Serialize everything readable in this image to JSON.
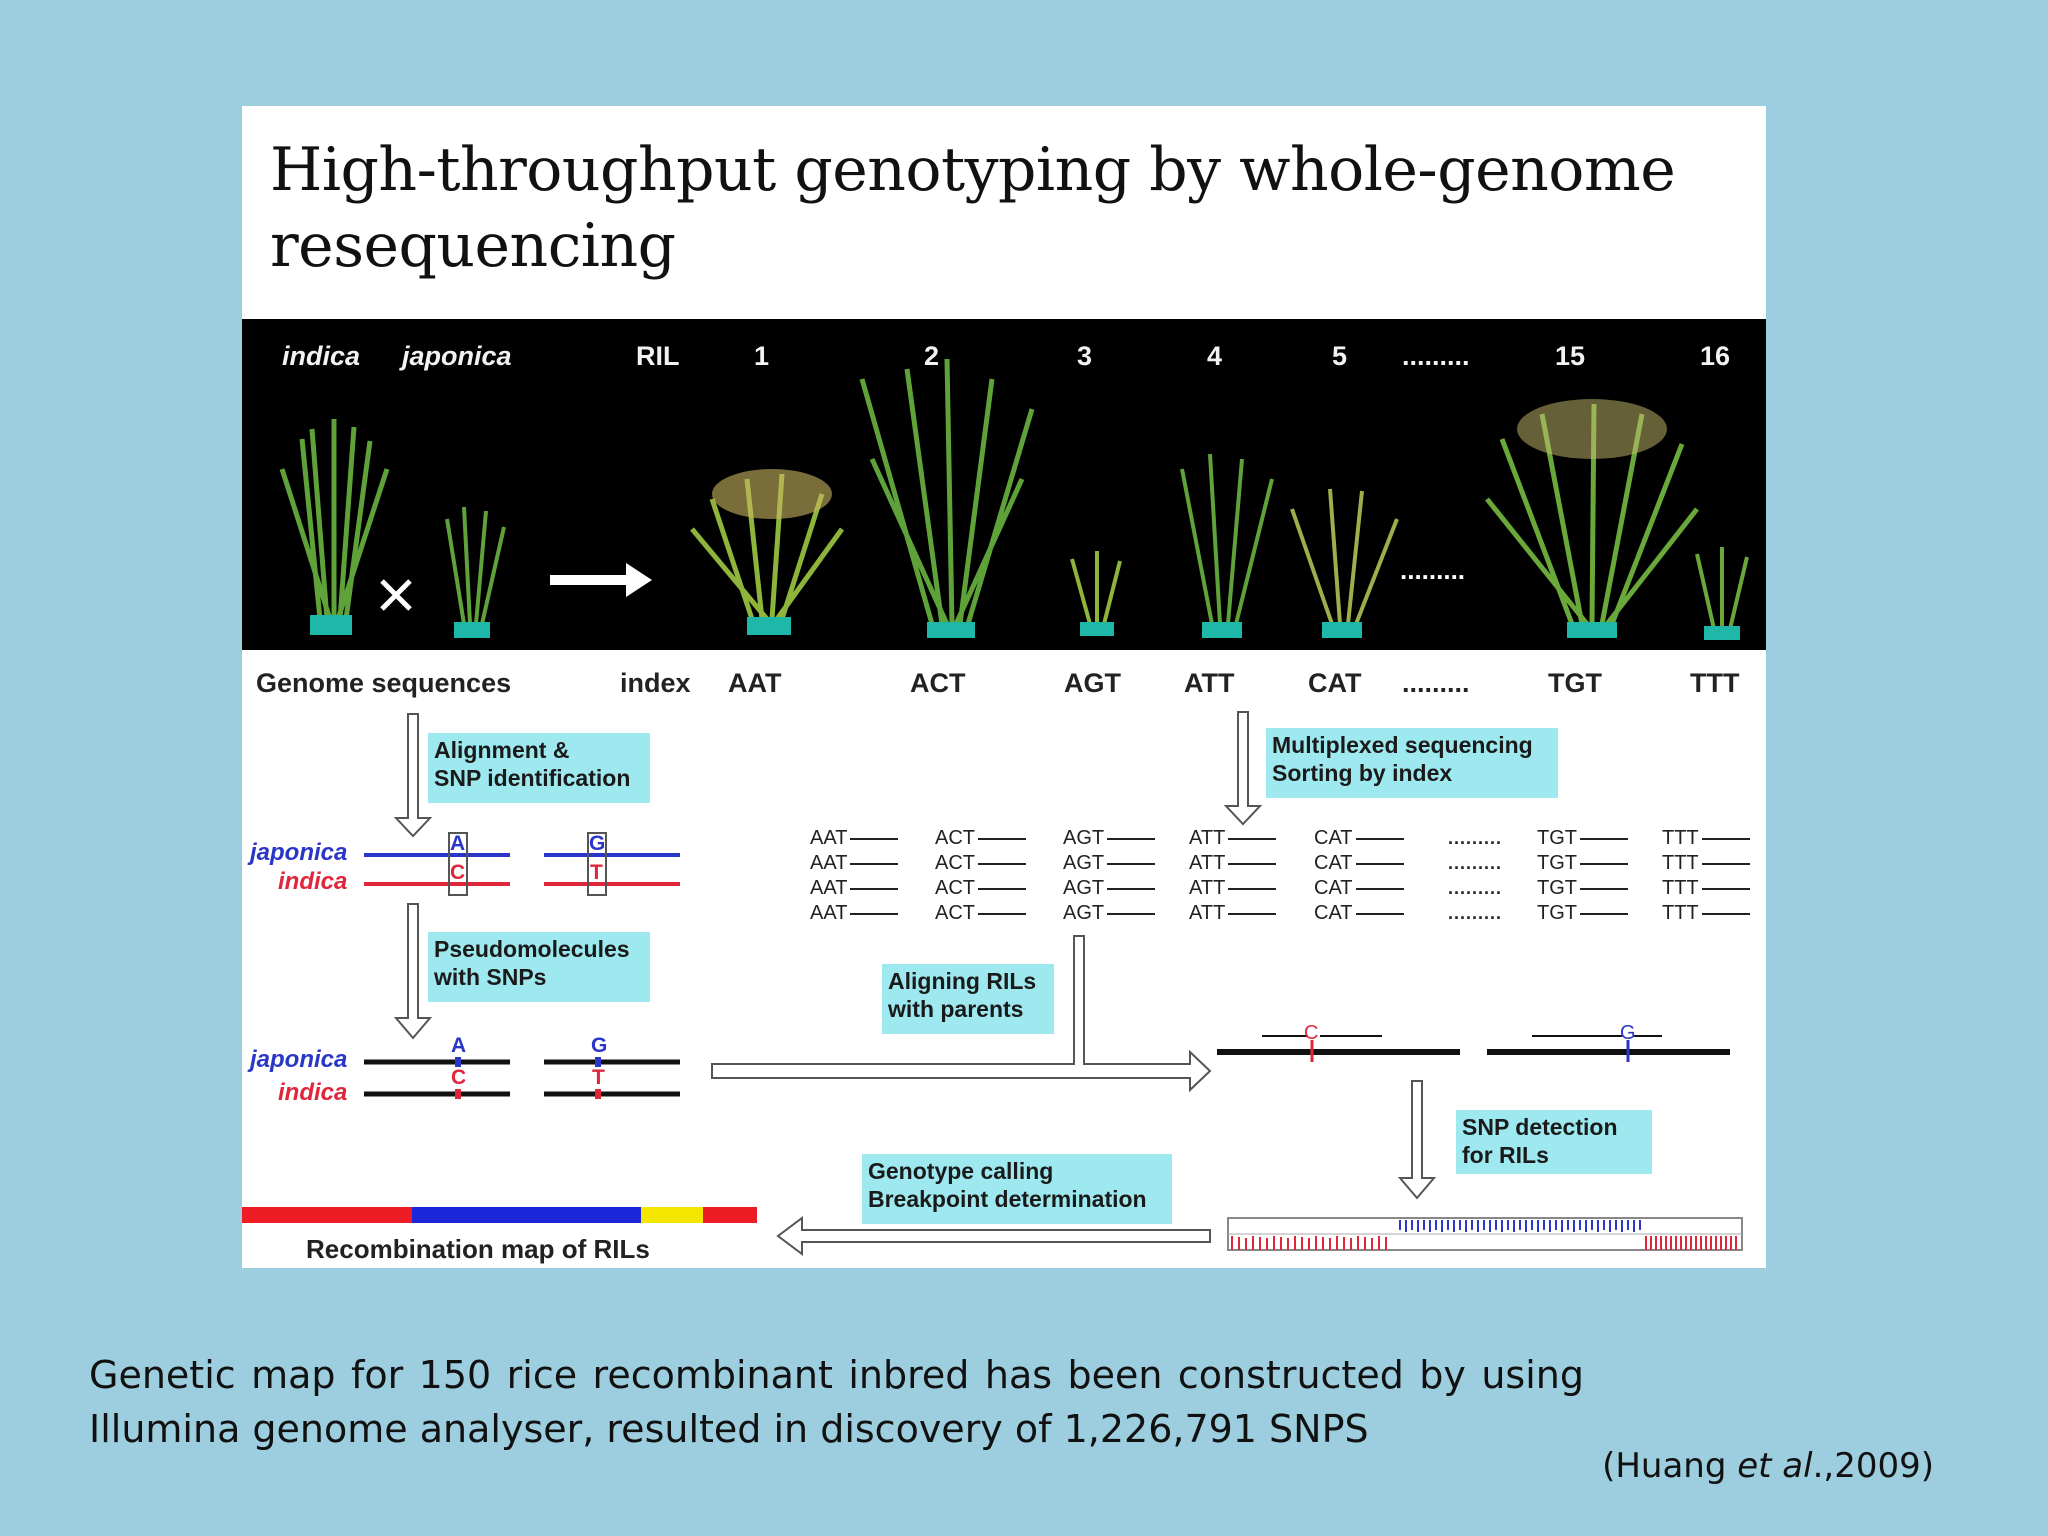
{
  "figure": {
    "title": "High-throughput genotyping by whole-genome resequencing",
    "photo_labels": {
      "indica": "indica",
      "japonica": "japonica",
      "ril": "RIL",
      "lines": [
        "1",
        "2",
        "3",
        "4",
        "5",
        "15",
        "16"
      ],
      "dots": "........."
    },
    "genome_row": {
      "genome_sequences": "Genome sequences",
      "index": "index",
      "indexes": [
        "AAT",
        "ACT",
        "AGT",
        "ATT",
        "CAT",
        "TGT",
        "TTT"
      ],
      "dots": "........."
    },
    "steps": {
      "alignment": "Alignment &\nSNP identification",
      "pseudomolecules": "Pseudomolecules\nwith SNPs",
      "multiplexed": "Multiplexed sequencing\nSorting by index",
      "aligning_rils": "Aligning RILs\nwith parents",
      "snp_detection": "SNP detection\nfor RILs",
      "genotype_calling": "Genotype calling\nBreakpoint determination",
      "recombination_map": "Recombination map of RILs"
    },
    "parent_labels": {
      "japonica": "japonica",
      "indica": "indica"
    },
    "snp_alleles": {
      "japonica": [
        "A",
        "G"
      ],
      "indica": [
        "C",
        "T"
      ]
    },
    "ril_snps": [
      "C",
      "G"
    ],
    "reads": {
      "columns": [
        [
          "AAT",
          "AAT",
          "AAT",
          "AAT"
        ],
        [
          "ACT",
          "ACT",
          "ACT",
          "ACT"
        ],
        [
          "AGT",
          "AGT",
          "AGT",
          "AGT"
        ],
        [
          "ATT",
          "ATT",
          "ATT",
          "ATT"
        ],
        [
          "CAT",
          "CAT",
          "CAT",
          "CAT"
        ],
        [
          "TGT",
          "TGT",
          "TGT",
          "TGT"
        ],
        [
          "TTT",
          "TTT",
          "TTT",
          "TTT"
        ]
      ],
      "dots": "........."
    },
    "colors": {
      "japonica": "#2a36c8",
      "indica": "#e0263a",
      "step_box": "#9de9ef",
      "background": "#9dcedf"
    }
  },
  "caption": "Genetic map for 150 rice recombinant inbred has been constructed by using Illumina genome analyser, resulted in discovery of 1,226,791 SNPS",
  "citation": {
    "before": "(Huang ",
    "italic": "et al",
    "after": ".,2009)"
  }
}
